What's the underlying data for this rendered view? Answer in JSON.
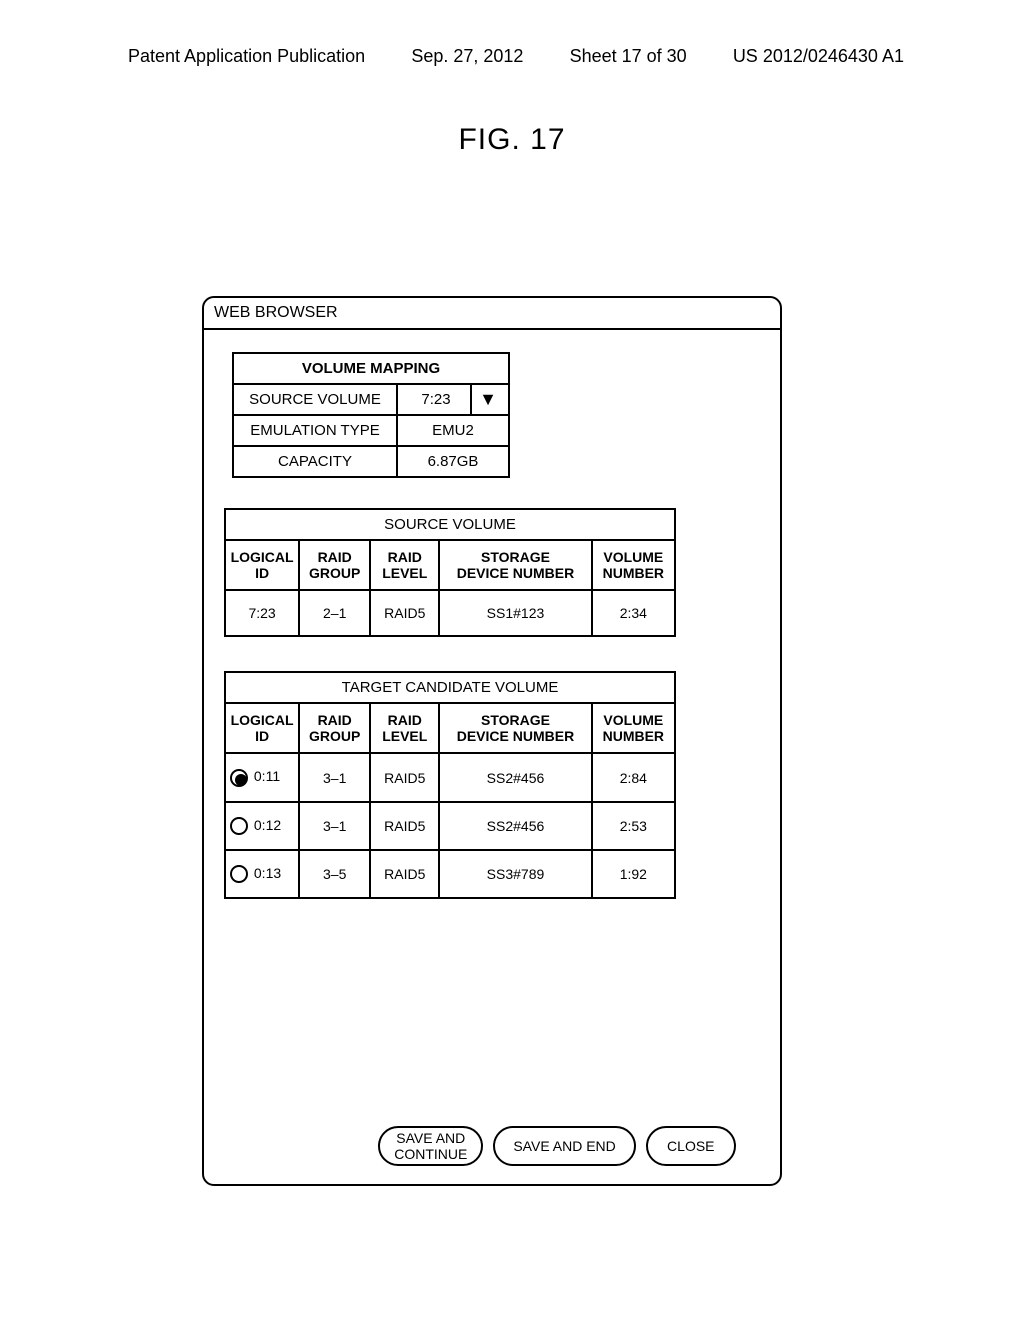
{
  "header": {
    "left": "Patent Application Publication",
    "date": "Sep. 27, 2012",
    "sheet": "Sheet 17 of 30",
    "pubno": "US 2012/0246430 A1"
  },
  "figure_label": "FIG. 17",
  "window": {
    "title": "WEB BROWSER"
  },
  "volume_mapping": {
    "caption": "VOLUME MAPPING",
    "rows": {
      "source_volume_label": "SOURCE VOLUME",
      "source_volume_value": "7:23",
      "emulation_label": "EMULATION TYPE",
      "emulation_value": "EMU2",
      "capacity_label": "CAPACITY",
      "capacity_value": "6.87GB"
    }
  },
  "source_table": {
    "caption": "SOURCE VOLUME",
    "columns": {
      "logical_id": "LOGICAL\nID",
      "raid_group": "RAID\nGROUP",
      "raid_level": "RAID\nLEVEL",
      "storage_dev": "STORAGE\nDEVICE NUMBER",
      "volume_num": "VOLUME\nNUMBER"
    },
    "row": {
      "logical_id": "7:23",
      "raid_group": "2–1",
      "raid_level": "RAID5",
      "storage_dev": "SS1#123",
      "volume_num": "2:34"
    }
  },
  "target_table": {
    "caption": "TARGET CANDIDATE VOLUME",
    "columns": {
      "logical_id": "LOGICAL\nID",
      "raid_group": "RAID\nGROUP",
      "raid_level": "RAID\nLEVEL",
      "storage_dev": "STORAGE\nDEVICE NUMBER",
      "volume_num": "VOLUME\nNUMBER"
    },
    "rows": [
      {
        "selected": true,
        "logical_id": "0:11",
        "raid_group": "3–1",
        "raid_level": "RAID5",
        "storage_dev": "SS2#456",
        "volume_num": "2:84"
      },
      {
        "selected": false,
        "logical_id": "0:12",
        "raid_group": "3–1",
        "raid_level": "RAID5",
        "storage_dev": "SS2#456",
        "volume_num": "2:53"
      },
      {
        "selected": false,
        "logical_id": "0:13",
        "raid_group": "3–5",
        "raid_level": "RAID5",
        "storage_dev": "SS3#789",
        "volume_num": "1:92"
      }
    ]
  },
  "buttons": {
    "save_continue": "SAVE AND\nCONTINUE",
    "save_end": "SAVE AND END",
    "close": "CLOSE"
  },
  "colors": {
    "fg": "#000000",
    "bg": "#ffffff"
  }
}
